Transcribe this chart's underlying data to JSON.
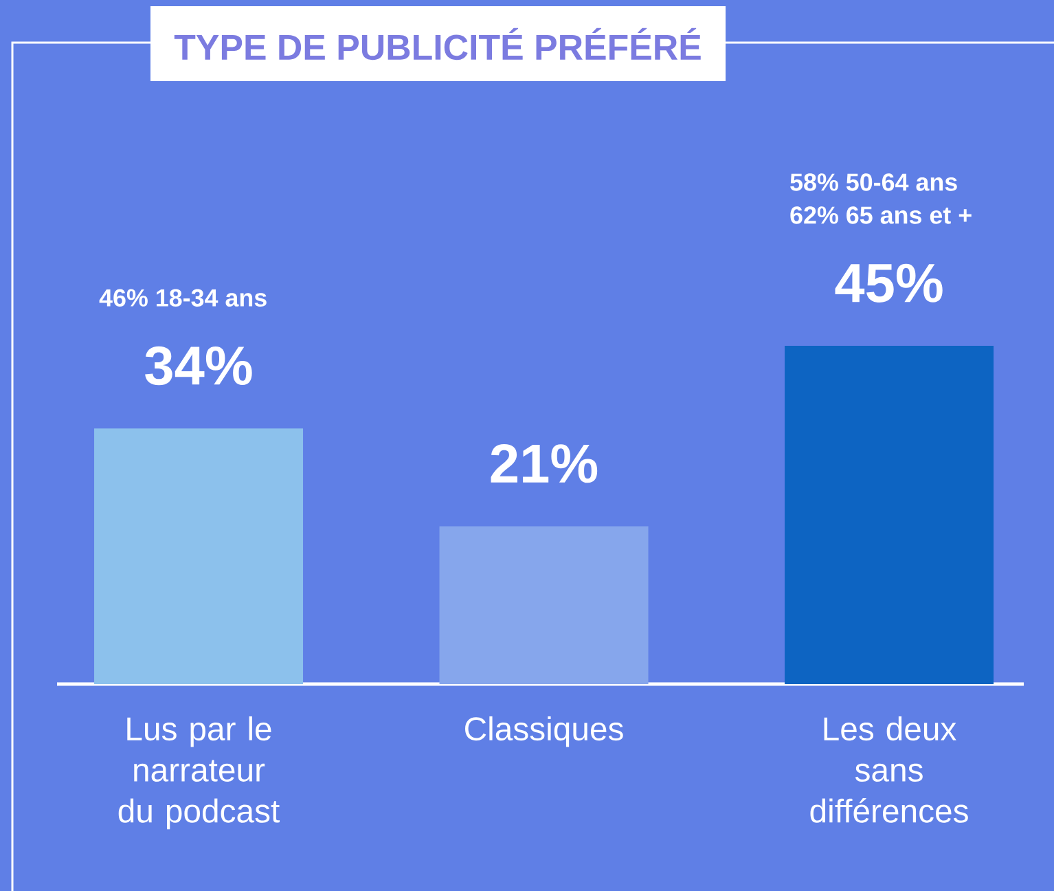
{
  "chart_data": {
    "type": "bar",
    "title": "TYPE DE PUBLICITÉ PRÉFÉRÉ",
    "categories": [
      "Lus par le narrateur du podcast",
      "Classiques",
      "Les deux sans différences"
    ],
    "values": [
      34,
      21,
      45
    ],
    "colors": [
      "#8cc1ec",
      "#86a6ec",
      "#0d64c2"
    ],
    "value_labels": [
      "34%",
      "21%",
      "45%"
    ],
    "annotations": [
      "46% 18-34 ans",
      "58% 50-64 ans",
      "62% 65 ans et +"
    ]
  }
}
